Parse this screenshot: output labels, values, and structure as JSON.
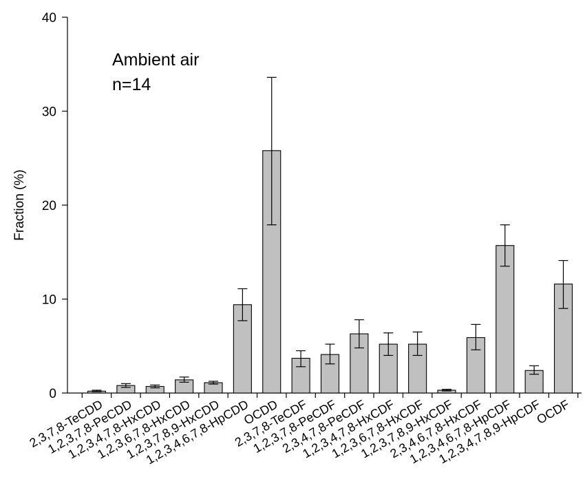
{
  "chart_data": {
    "type": "bar",
    "title": "",
    "xlabel": "",
    "ylabel": "Fraction (%)",
    "ylim": [
      0,
      40
    ],
    "yticks": [
      0,
      10,
      20,
      30,
      40
    ],
    "grid": false,
    "annotation": [
      "Ambient air",
      "n=14"
    ],
    "bar_color": "#c0c0c0",
    "categories": [
      "2,3,7,8-TeCDD",
      "1,2,3,7,8-PeCDD",
      "1,2,3,4,7,8-HxCDD",
      "1,2,3,6,7,8-HxCDD",
      "1,2,3,7,8,9-HxCDD",
      "1,2,3,4,6,7,8-HpCDD",
      "OCDD",
      "2,3,7,8-TeCDF",
      "1,2,3,7,8-PeCDF",
      "2,3,4,7,8-PeCDF",
      "1,2,3,4,7,8-HxCDF",
      "1,2,3,6,7,8-HxCDF",
      "1,2,3,7,8,9-HxCDF",
      "2,3,4,6,7,8-HxCDF",
      "1,2,3,4,6,7,8-HpCDF",
      "1,2,3,4,7,8,9-HpCDF",
      "OCDF"
    ],
    "values": [
      0.2,
      0.8,
      0.7,
      1.4,
      1.1,
      9.4,
      25.8,
      3.7,
      4.1,
      6.3,
      5.2,
      5.2,
      0.3,
      5.9,
      15.7,
      2.4,
      11.6
    ],
    "error_upper": [
      0.3,
      1.0,
      0.85,
      1.7,
      1.25,
      11.1,
      33.6,
      4.5,
      5.2,
      7.8,
      6.4,
      6.5,
      0.4,
      7.3,
      17.9,
      2.9,
      14.1
    ],
    "error_lower": [
      0.15,
      0.6,
      0.55,
      1.15,
      0.95,
      7.7,
      17.9,
      2.8,
      3.1,
      4.8,
      4.0,
      4.0,
      0.22,
      4.6,
      13.5,
      2.0,
      9.0
    ]
  }
}
